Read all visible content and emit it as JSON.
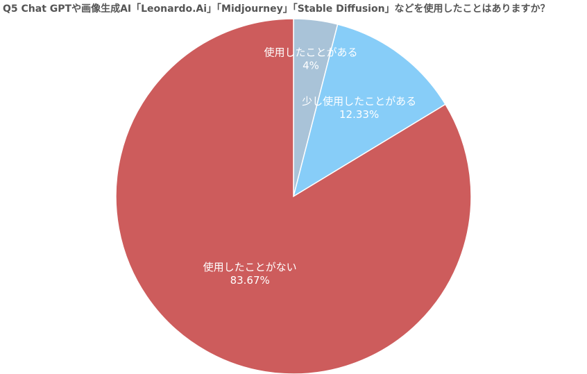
{
  "chart_data": {
    "type": "pie",
    "title": "Q5 Chat GPTや画像生成AI「Leonardo.Ai」「Midjourney」「Stable Diffusion」などを使用したことはありますか？",
    "categories": [
      "使用したことがある",
      "少し使用したことがある",
      "使用したことがない"
    ],
    "values": [
      4,
      12.33,
      83.67
    ],
    "value_labels": [
      "4%",
      "12.33%",
      "83.67%"
    ],
    "colors": [
      "#a9c3d8",
      "#87cdf8",
      "#cd5c5c"
    ]
  }
}
